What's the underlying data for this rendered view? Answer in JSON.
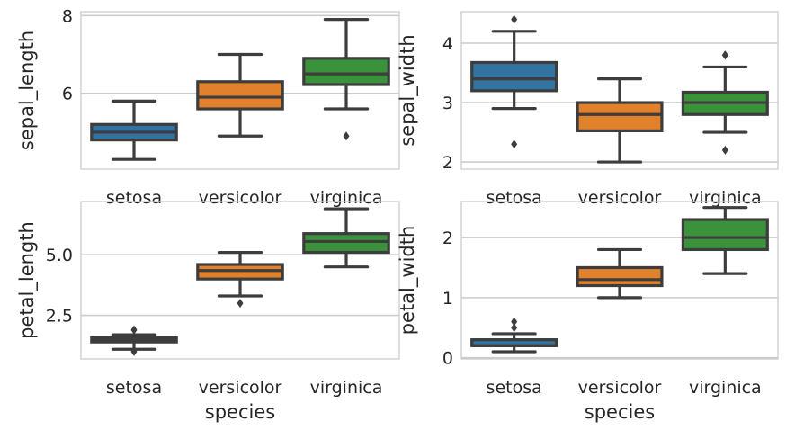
{
  "figure": {
    "description_free": true
  },
  "colors": {
    "setosa": "#3274a1",
    "versicolor": "#e1812c",
    "virginica": "#3a923a",
    "box_edge": "#3d3d3d",
    "grid": "#cccccc",
    "spine": "#cccccc"
  },
  "chart_data": [
    {
      "type": "box",
      "id": "sepal_length",
      "xlabel": "",
      "ylabel": "sepal_length",
      "categories": [
        "setosa",
        "versicolor",
        "virginica"
      ],
      "ylim": [
        4.05,
        8.1
      ],
      "yticks": [
        6,
        8
      ],
      "ytick_labels": [
        "6",
        "8"
      ],
      "boxes": [
        {
          "category": "setosa",
          "whislo": 4.3,
          "q1": 4.8,
          "med": 5.0,
          "q3": 5.2,
          "whishi": 5.8,
          "fliers": []
        },
        {
          "category": "versicolor",
          "whislo": 4.9,
          "q1": 5.6,
          "med": 5.9,
          "q3": 6.3,
          "whishi": 7.0,
          "fliers": []
        },
        {
          "category": "virginica",
          "whislo": 5.6,
          "q1": 6.225,
          "med": 6.5,
          "q3": 6.9,
          "whishi": 7.9,
          "fliers": [
            4.9
          ]
        }
      ]
    },
    {
      "type": "box",
      "id": "sepal_width",
      "xlabel": "",
      "ylabel": "sepal_width",
      "categories": [
        "setosa",
        "versicolor",
        "virginica"
      ],
      "ylim": [
        1.88,
        4.53
      ],
      "yticks": [
        2,
        3,
        4
      ],
      "ytick_labels": [
        "2",
        "3",
        "4"
      ],
      "boxes": [
        {
          "category": "setosa",
          "whislo": 2.9,
          "q1": 3.2,
          "med": 3.4,
          "q3": 3.675,
          "whishi": 4.2,
          "fliers": [
            2.3,
            4.4
          ]
        },
        {
          "category": "versicolor",
          "whislo": 2.0,
          "q1": 2.525,
          "med": 2.8,
          "q3": 3.0,
          "whishi": 3.4,
          "fliers": []
        },
        {
          "category": "virginica",
          "whislo": 2.5,
          "q1": 2.8,
          "med": 3.0,
          "q3": 3.175,
          "whishi": 3.6,
          "fliers": [
            2.2,
            3.8,
            3.8
          ]
        }
      ]
    },
    {
      "type": "box",
      "id": "petal_length",
      "xlabel": "species",
      "ylabel": "petal_length",
      "categories": [
        "setosa",
        "versicolor",
        "virginica"
      ],
      "ylim": [
        0.7,
        7.2
      ],
      "yticks": [
        2.5,
        5.0
      ],
      "ytick_labels": [
        "2.5",
        "5.0"
      ],
      "boxes": [
        {
          "category": "setosa",
          "whislo": 1.1,
          "q1": 1.4,
          "med": 1.5,
          "q3": 1.575,
          "whishi": 1.7,
          "fliers": [
            1.0,
            1.9,
            1.9
          ]
        },
        {
          "category": "versicolor",
          "whislo": 3.3,
          "q1": 4.0,
          "med": 4.35,
          "q3": 4.6,
          "whishi": 5.1,
          "fliers": [
            3.0
          ]
        },
        {
          "category": "virginica",
          "whislo": 4.5,
          "q1": 5.1,
          "med": 5.55,
          "q3": 5.875,
          "whishi": 6.9,
          "fliers": []
        }
      ]
    },
    {
      "type": "box",
      "id": "petal_width",
      "xlabel": "species",
      "ylabel": "petal_width",
      "categories": [
        "setosa",
        "versicolor",
        "virginica"
      ],
      "ylim": [
        -0.02,
        2.6
      ],
      "yticks": [
        0,
        1,
        2
      ],
      "ytick_labels": [
        "0",
        "1",
        "2"
      ],
      "boxes": [
        {
          "category": "setosa",
          "whislo": 0.1,
          "q1": 0.2,
          "med": 0.2,
          "q3": 0.3,
          "whishi": 0.4,
          "fliers": [
            0.5,
            0.6
          ]
        },
        {
          "category": "versicolor",
          "whislo": 1.0,
          "q1": 1.2,
          "med": 1.3,
          "q3": 1.5,
          "whishi": 1.8,
          "fliers": []
        },
        {
          "category": "virginica",
          "whislo": 1.4,
          "q1": 1.8,
          "med": 2.0,
          "q3": 2.3,
          "whishi": 2.5,
          "fliers": []
        }
      ]
    }
  ]
}
